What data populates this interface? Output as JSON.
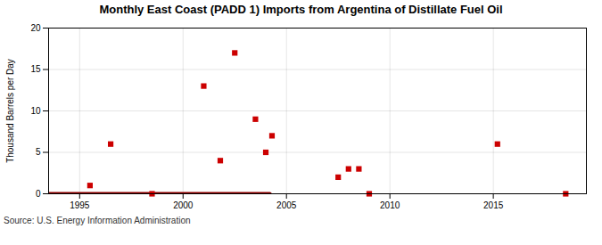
{
  "chart_data": {
    "type": "scatter",
    "title": "Monthly East Coast (PADD 1) Imports from Argentina of Distillate Fuel Oil",
    "ylabel": "Thousand Barrels per Day",
    "source": "Source: U.S. Energy Information Administration",
    "x": [
      1995.5,
      1996.5,
      1998.5,
      2001.0,
      2001.8,
      2002.5,
      2003.5,
      2004.0,
      2004.3,
      2007.5,
      2008.0,
      2008.5,
      2009.0,
      2015.2,
      2018.5
    ],
    "values": [
      1.0,
      6.0,
      0.0,
      13.0,
      4.0,
      17.0,
      9.0,
      5.0,
      7.0,
      2.0,
      3.0,
      3.0,
      0.0,
      6.0,
      0.0
    ],
    "color": "#cc0000",
    "marker": "square",
    "reference_line": {
      "x_start": 1993.5,
      "x_end": 2004.2,
      "y": 0,
      "color": "#8b0000"
    },
    "xlim": [
      1993.5,
      2019.5
    ],
    "xticks": [
      1995,
      2000,
      2005,
      2010,
      2015
    ],
    "ylim": [
      0,
      20
    ],
    "yticks": [
      0,
      5,
      10,
      15,
      20
    ],
    "grid": true
  }
}
